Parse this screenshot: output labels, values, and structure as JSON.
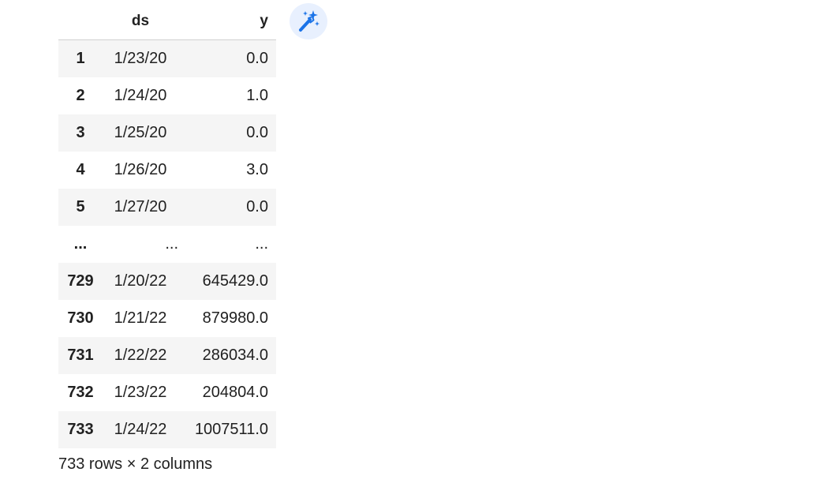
{
  "dataframe": {
    "columns": [
      "ds",
      "y"
    ],
    "rows": [
      {
        "index": "1",
        "ds": "1/23/20",
        "y": "0.0"
      },
      {
        "index": "2",
        "ds": "1/24/20",
        "y": "1.0"
      },
      {
        "index": "3",
        "ds": "1/25/20",
        "y": "0.0"
      },
      {
        "index": "4",
        "ds": "1/26/20",
        "y": "3.0"
      },
      {
        "index": "5",
        "ds": "1/27/20",
        "y": "0.0"
      },
      {
        "index": "...",
        "ds": "...",
        "y": "..."
      },
      {
        "index": "729",
        "ds": "1/20/22",
        "y": "645429.0"
      },
      {
        "index": "730",
        "ds": "1/21/22",
        "y": "879980.0"
      },
      {
        "index": "731",
        "ds": "1/22/22",
        "y": "286034.0"
      },
      {
        "index": "732",
        "ds": "1/23/22",
        "y": "204804.0"
      },
      {
        "index": "733",
        "ds": "1/24/22",
        "y": "1007511.0"
      }
    ],
    "shape_text": "733 rows × 2 columns"
  },
  "toolbar": {
    "magic_icon": "magic-wand-sparkle-icon",
    "accent": "#1a73e8",
    "button_bg": "#e8f0fe"
  }
}
